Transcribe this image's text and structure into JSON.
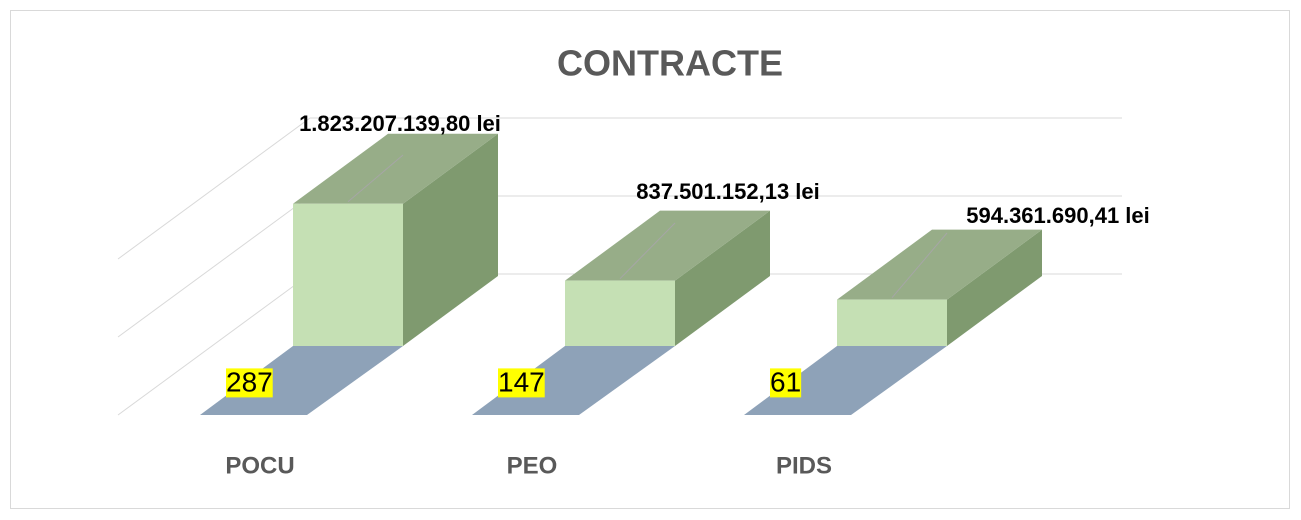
{
  "chart_data": {
    "type": "bar3d",
    "title": "CONTRACTE",
    "categories": [
      "POCU",
      "PEO",
      "PIDS"
    ],
    "values": [
      1823207139.8,
      837501152.13,
      594361690.41
    ],
    "value_labels": [
      "1.823.207.139,80 lei",
      "837.501.152,13 lei",
      "594.361.690,41 lei"
    ],
    "counts": [
      287,
      147,
      61
    ],
    "ylim": [
      0,
      3000000000
    ],
    "yticks": [
      1000000000,
      2000000000,
      3000000000
    ],
    "grid": true,
    "colors": {
      "front": "#c5e0b4",
      "top": "#97ad88",
      "side": "#7f9a6f",
      "floor": "#8ea2b8",
      "highlight": "#ffff00"
    }
  }
}
